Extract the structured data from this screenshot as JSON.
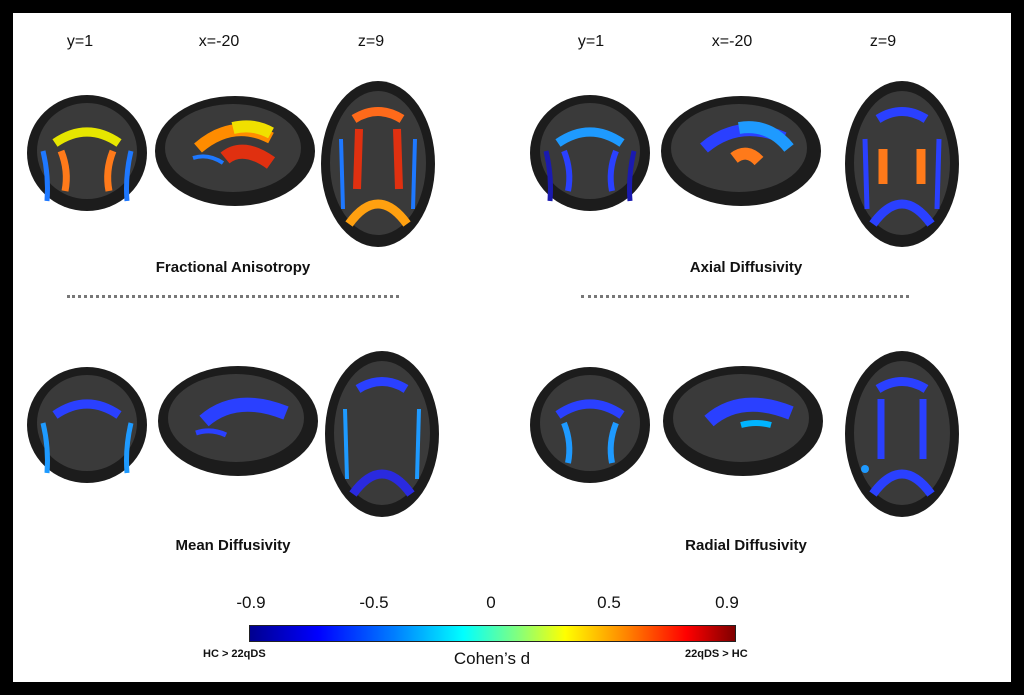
{
  "figure": {
    "view_labels": [
      "y=1",
      "x=-20",
      "z=9"
    ],
    "panels": [
      {
        "title": "Fractional Anisotropy"
      },
      {
        "title": "Axial Diffusivity"
      },
      {
        "title": "Mean Diffusivity"
      },
      {
        "title": "Radial Diffusivity"
      }
    ],
    "colorbar": {
      "ticks": [
        "-0.9",
        "-0.5",
        "0",
        "0.5",
        "0.9"
      ],
      "label": "Cohen’s d",
      "left_caption": "HC > 22qDS",
      "right_caption": "22qDS > HC"
    }
  }
}
